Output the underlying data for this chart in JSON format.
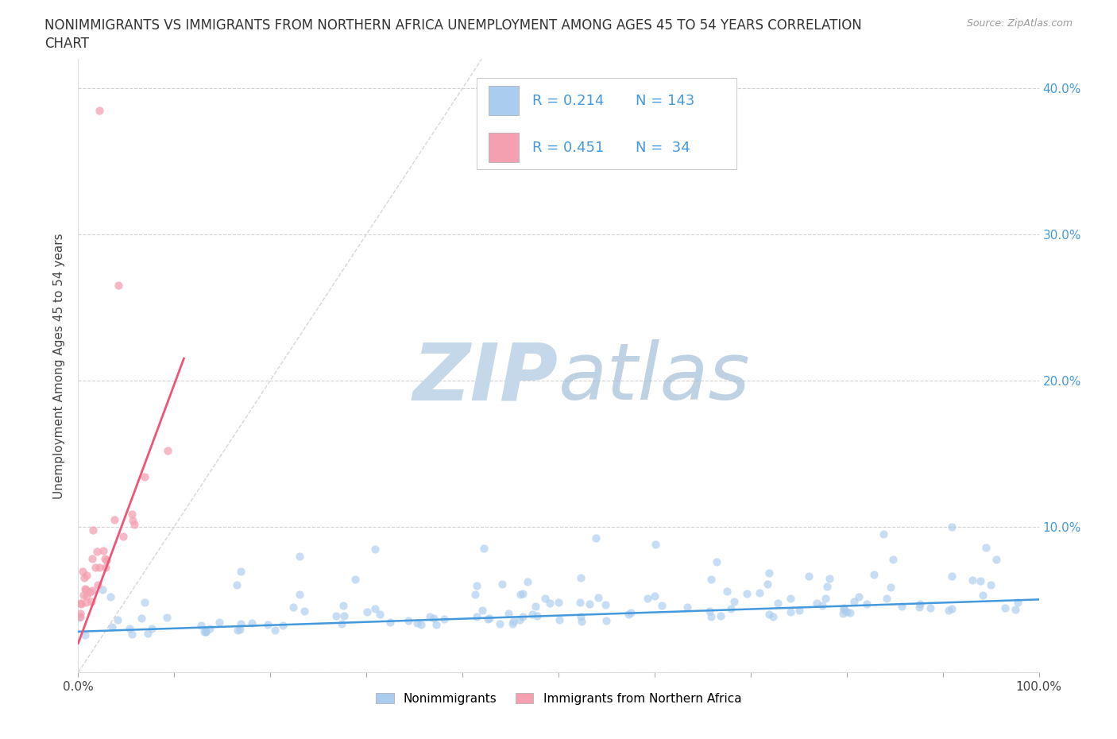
{
  "title_line1": "NONIMMIGRANTS VS IMMIGRANTS FROM NORTHERN AFRICA UNEMPLOYMENT AMONG AGES 45 TO 54 YEARS CORRELATION",
  "title_line2": "CHART",
  "source_text": "Source: ZipAtlas.com",
  "ylabel": "Unemployment Among Ages 45 to 54 years",
  "legend_label_blue": "Nonimmigrants",
  "legend_label_pink": "Immigrants from Northern Africa",
  "R_blue": 0.214,
  "N_blue": 143,
  "R_pink": 0.451,
  "N_pink": 34,
  "xlim": [
    0.0,
    1.0
  ],
  "ylim": [
    0.0,
    0.42
  ],
  "x_ticks": [
    0.0,
    0.1,
    0.2,
    0.3,
    0.4,
    0.5,
    0.6,
    0.7,
    0.8,
    0.9,
    1.0
  ],
  "y_ticks": [
    0.0,
    0.1,
    0.2,
    0.3,
    0.4
  ],
  "grid_color": "#cccccc",
  "blue_scatter_color": "#aaccee",
  "pink_scatter_color": "#f4a0b0",
  "blue_line_color": "#4499dd",
  "pink_line_color": "#ee5577",
  "marker_size": 55,
  "watermark_zip_color": "#c5d8ea",
  "watermark_atlas_color": "#9bbbd4",
  "tick_label_color": "#4499dd",
  "left_tick_color": "#999999"
}
